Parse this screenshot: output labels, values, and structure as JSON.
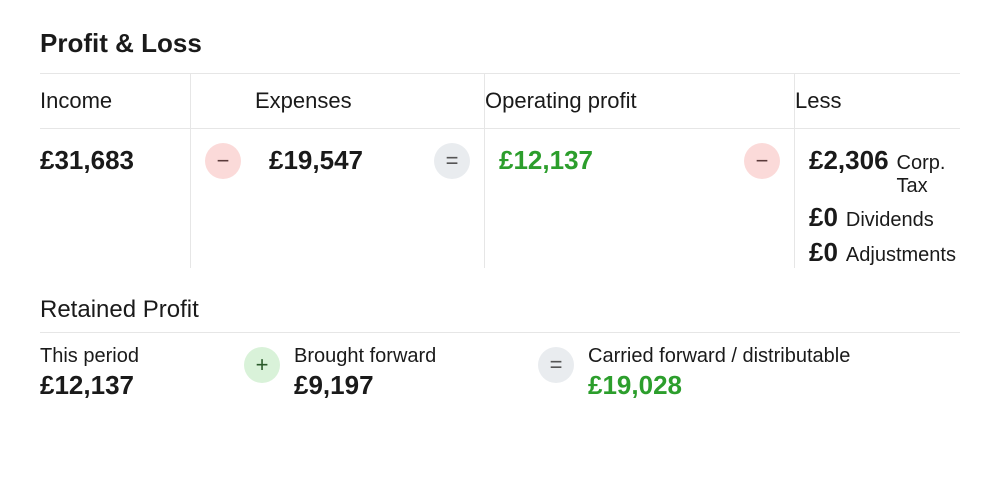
{
  "colors": {
    "text": "#1a1a1a",
    "border": "#e6e6e6",
    "green": "#2c9e2c",
    "op_minus_bg": "#fbdad9",
    "op_equals_bg": "#e9ecef",
    "op_plus_bg": "#d9f2d9",
    "background": "#ffffff"
  },
  "profit_loss": {
    "title": "Profit & Loss",
    "columns": {
      "income": {
        "label": "Income",
        "value": "£31,683"
      },
      "expenses": {
        "label": "Expenses",
        "value": "£19,547"
      },
      "operating_profit": {
        "label": "Operating profit",
        "value": "£12,137"
      },
      "less": {
        "label": "Less",
        "items": [
          {
            "value": "£2,306",
            "label": "Corp. Tax"
          },
          {
            "value": "£0",
            "label": "Dividends"
          },
          {
            "value": "£0",
            "label": "Adjustments"
          }
        ]
      }
    },
    "operators": {
      "minus": "−",
      "equals": "=",
      "plus": "+"
    }
  },
  "retained_profit": {
    "title": "Retained Profit",
    "this_period": {
      "label": "This period",
      "value": "£12,137"
    },
    "brought_forward": {
      "label": "Brought forward",
      "value": "£9,197"
    },
    "carried_forward": {
      "label": "Carried forward / distributable",
      "value": "£19,028"
    }
  },
  "typography": {
    "section_title_size": 26,
    "header_label_size": 22,
    "value_size": 26,
    "sub_label_size": 20
  }
}
